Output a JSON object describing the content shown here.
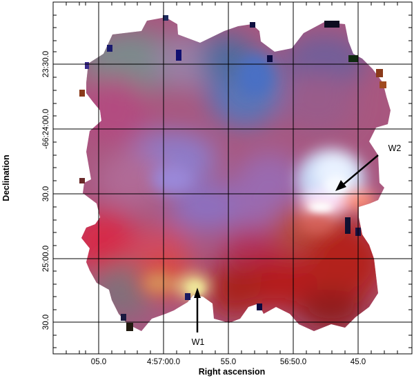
{
  "figure": {
    "xlabel": "Right ascension",
    "ylabel": "Declination",
    "x_ticks": [
      "05.0",
      "4:57:00.0",
      "55.0",
      "56:50.0",
      "45.0"
    ],
    "y_ticks": [
      "23:30.0",
      "-66:24:00.0",
      "30.0",
      "25:00.0",
      "30.0"
    ],
    "markers": [
      {
        "label": "W1"
      },
      {
        "label": "W2"
      }
    ],
    "grid": true,
    "colors": {
      "grid": "#000000",
      "background": "#ffffff"
    }
  }
}
